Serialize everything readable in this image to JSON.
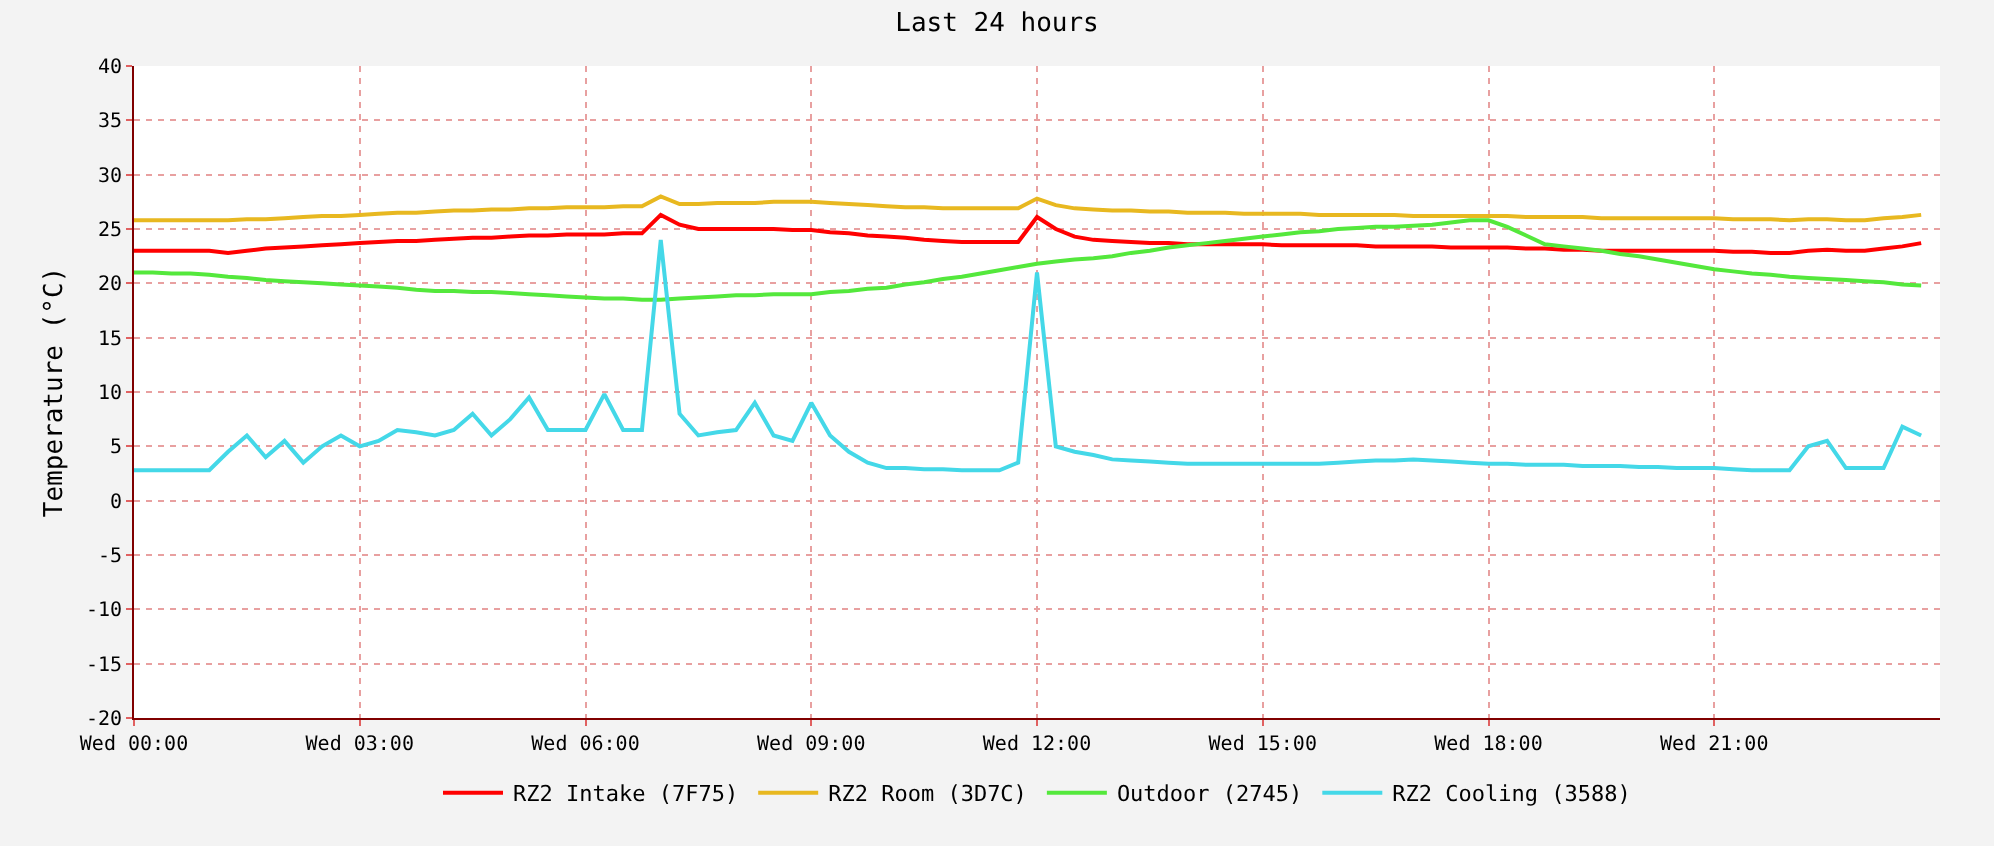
{
  "chart_data": {
    "type": "line",
    "title": "Last 24 hours",
    "ylabel": "Temperature (°C)",
    "categories": [
      "Wed 00:00",
      null,
      null,
      null,
      null,
      null,
      null,
      null,
      null,
      null,
      null,
      null,
      "Wed 03:00",
      null,
      null,
      null,
      null,
      null,
      null,
      null,
      null,
      null,
      null,
      null,
      "Wed 06:00",
      null,
      null,
      null,
      null,
      null,
      null,
      null,
      null,
      null,
      null,
      null,
      "Wed 09:00",
      null,
      null,
      null,
      null,
      null,
      null,
      null,
      null,
      null,
      null,
      null,
      "Wed 12:00",
      null,
      null,
      null,
      null,
      null,
      null,
      null,
      null,
      null,
      null,
      null,
      "Wed 15:00",
      null,
      null,
      null,
      null,
      null,
      null,
      null,
      null,
      null,
      null,
      null,
      "Wed 18:00",
      null,
      null,
      null,
      null,
      null,
      null,
      null,
      null,
      null,
      null,
      null,
      "Wed 21:00",
      null,
      null,
      null,
      null,
      null,
      null,
      null,
      null,
      null,
      null,
      null
    ],
    "ylim": [
      -20,
      40
    ],
    "yticks": [
      -20,
      -15,
      -10,
      -5,
      0,
      5,
      10,
      15,
      20,
      25,
      30,
      35,
      40
    ],
    "grid": true,
    "legend": "bottom",
    "line_style": "solid",
    "marker": "none",
    "series": [
      {
        "name": "RZ2 Intake (7F75)",
        "color": "#ff0000",
        "values": [
          23.0,
          23.0,
          23.0,
          23.0,
          23.0,
          22.8,
          23.0,
          23.2,
          23.3,
          23.4,
          23.5,
          23.6,
          23.7,
          23.8,
          23.9,
          23.9,
          24.0,
          24.1,
          24.2,
          24.2,
          24.3,
          24.4,
          24.4,
          24.5,
          24.5,
          24.5,
          24.6,
          24.6,
          26.3,
          25.4,
          25.0,
          25.0,
          25.0,
          25.0,
          25.0,
          24.9,
          24.9,
          24.7,
          24.6,
          24.4,
          24.3,
          24.2,
          24.0,
          23.9,
          23.8,
          23.8,
          23.8,
          23.8,
          26.1,
          25.0,
          24.3,
          24.0,
          23.9,
          23.8,
          23.7,
          23.7,
          23.6,
          23.6,
          23.6,
          23.6,
          23.6,
          23.5,
          23.5,
          23.5,
          23.5,
          23.5,
          23.4,
          23.4,
          23.4,
          23.4,
          23.3,
          23.3,
          23.3,
          23.3,
          23.2,
          23.2,
          23.1,
          23.1,
          23.0,
          23.0,
          23.0,
          23.0,
          23.0,
          23.0,
          23.0,
          22.9,
          22.9,
          22.8,
          22.8,
          23.0,
          23.1,
          23.0,
          23.0,
          23.2,
          23.4,
          23.7
        ]
      },
      {
        "name": "RZ2 Room (3D7C)",
        "color": "#e8b820",
        "values": [
          25.8,
          25.8,
          25.8,
          25.8,
          25.8,
          25.8,
          25.9,
          25.9,
          26.0,
          26.1,
          26.2,
          26.2,
          26.3,
          26.4,
          26.5,
          26.5,
          26.6,
          26.7,
          26.7,
          26.8,
          26.8,
          26.9,
          26.9,
          27.0,
          27.0,
          27.0,
          27.1,
          27.1,
          28.0,
          27.3,
          27.3,
          27.4,
          27.4,
          27.4,
          27.5,
          27.5,
          27.5,
          27.4,
          27.3,
          27.2,
          27.1,
          27.0,
          27.0,
          26.9,
          26.9,
          26.9,
          26.9,
          26.9,
          27.8,
          27.2,
          26.9,
          26.8,
          26.7,
          26.7,
          26.6,
          26.6,
          26.5,
          26.5,
          26.5,
          26.4,
          26.4,
          26.4,
          26.4,
          26.3,
          26.3,
          26.3,
          26.3,
          26.3,
          26.2,
          26.2,
          26.2,
          26.2,
          26.2,
          26.2,
          26.1,
          26.1,
          26.1,
          26.1,
          26.0,
          26.0,
          26.0,
          26.0,
          26.0,
          26.0,
          26.0,
          25.9,
          25.9,
          25.9,
          25.8,
          25.9,
          25.9,
          25.8,
          25.8,
          26.0,
          26.1,
          26.3
        ]
      },
      {
        "name": "Outdoor (2745)",
        "color": "#54e83c",
        "values": [
          21.0,
          21.0,
          20.9,
          20.9,
          20.8,
          20.6,
          20.5,
          20.3,
          20.2,
          20.1,
          20.0,
          19.9,
          19.8,
          19.7,
          19.6,
          19.4,
          19.3,
          19.3,
          19.2,
          19.2,
          19.1,
          19.0,
          18.9,
          18.8,
          18.7,
          18.6,
          18.6,
          18.5,
          18.5,
          18.6,
          18.7,
          18.8,
          18.9,
          18.9,
          19.0,
          19.0,
          19.0,
          19.2,
          19.3,
          19.5,
          19.6,
          19.9,
          20.1,
          20.4,
          20.6,
          20.9,
          21.2,
          21.5,
          21.8,
          22.0,
          22.2,
          22.3,
          22.5,
          22.8,
          23.0,
          23.3,
          23.5,
          23.7,
          23.9,
          24.1,
          24.3,
          24.5,
          24.7,
          24.8,
          25.0,
          25.1,
          25.2,
          25.2,
          25.3,
          25.4,
          25.6,
          25.8,
          25.8,
          25.2,
          24.4,
          23.6,
          23.4,
          23.2,
          23.0,
          22.7,
          22.5,
          22.2,
          21.9,
          21.6,
          21.3,
          21.1,
          20.9,
          20.8,
          20.6,
          20.5,
          20.4,
          20.3,
          20.2,
          20.1,
          19.9,
          19.8
        ]
      },
      {
        "name": "RZ2 Cooling (3588)",
        "color": "#44d8e8",
        "values": [
          2.8,
          2.8,
          2.8,
          2.8,
          2.8,
          4.5,
          6.0,
          4.0,
          5.5,
          3.5,
          5.0,
          6.0,
          5.0,
          5.5,
          6.5,
          6.3,
          6.0,
          6.5,
          8.0,
          6.0,
          7.5,
          9.5,
          6.5,
          6.5,
          6.5,
          9.8,
          6.5,
          6.5,
          24.0,
          8.0,
          6.0,
          6.3,
          6.5,
          9.0,
          6.0,
          5.5,
          9.0,
          6.0,
          4.5,
          3.5,
          3.0,
          3.0,
          2.9,
          2.9,
          2.8,
          2.8,
          2.8,
          3.5,
          21.0,
          5.0,
          4.5,
          4.2,
          3.8,
          3.7,
          3.6,
          3.5,
          3.4,
          3.4,
          3.4,
          3.4,
          3.4,
          3.4,
          3.4,
          3.4,
          3.5,
          3.6,
          3.7,
          3.7,
          3.8,
          3.7,
          3.6,
          3.5,
          3.4,
          3.4,
          3.3,
          3.3,
          3.3,
          3.2,
          3.2,
          3.2,
          3.1,
          3.1,
          3.0,
          3.0,
          3.0,
          2.9,
          2.8,
          2.8,
          2.8,
          5.0,
          5.5,
          3.0,
          3.0,
          3.0,
          6.8,
          6.0
        ]
      }
    ]
  }
}
